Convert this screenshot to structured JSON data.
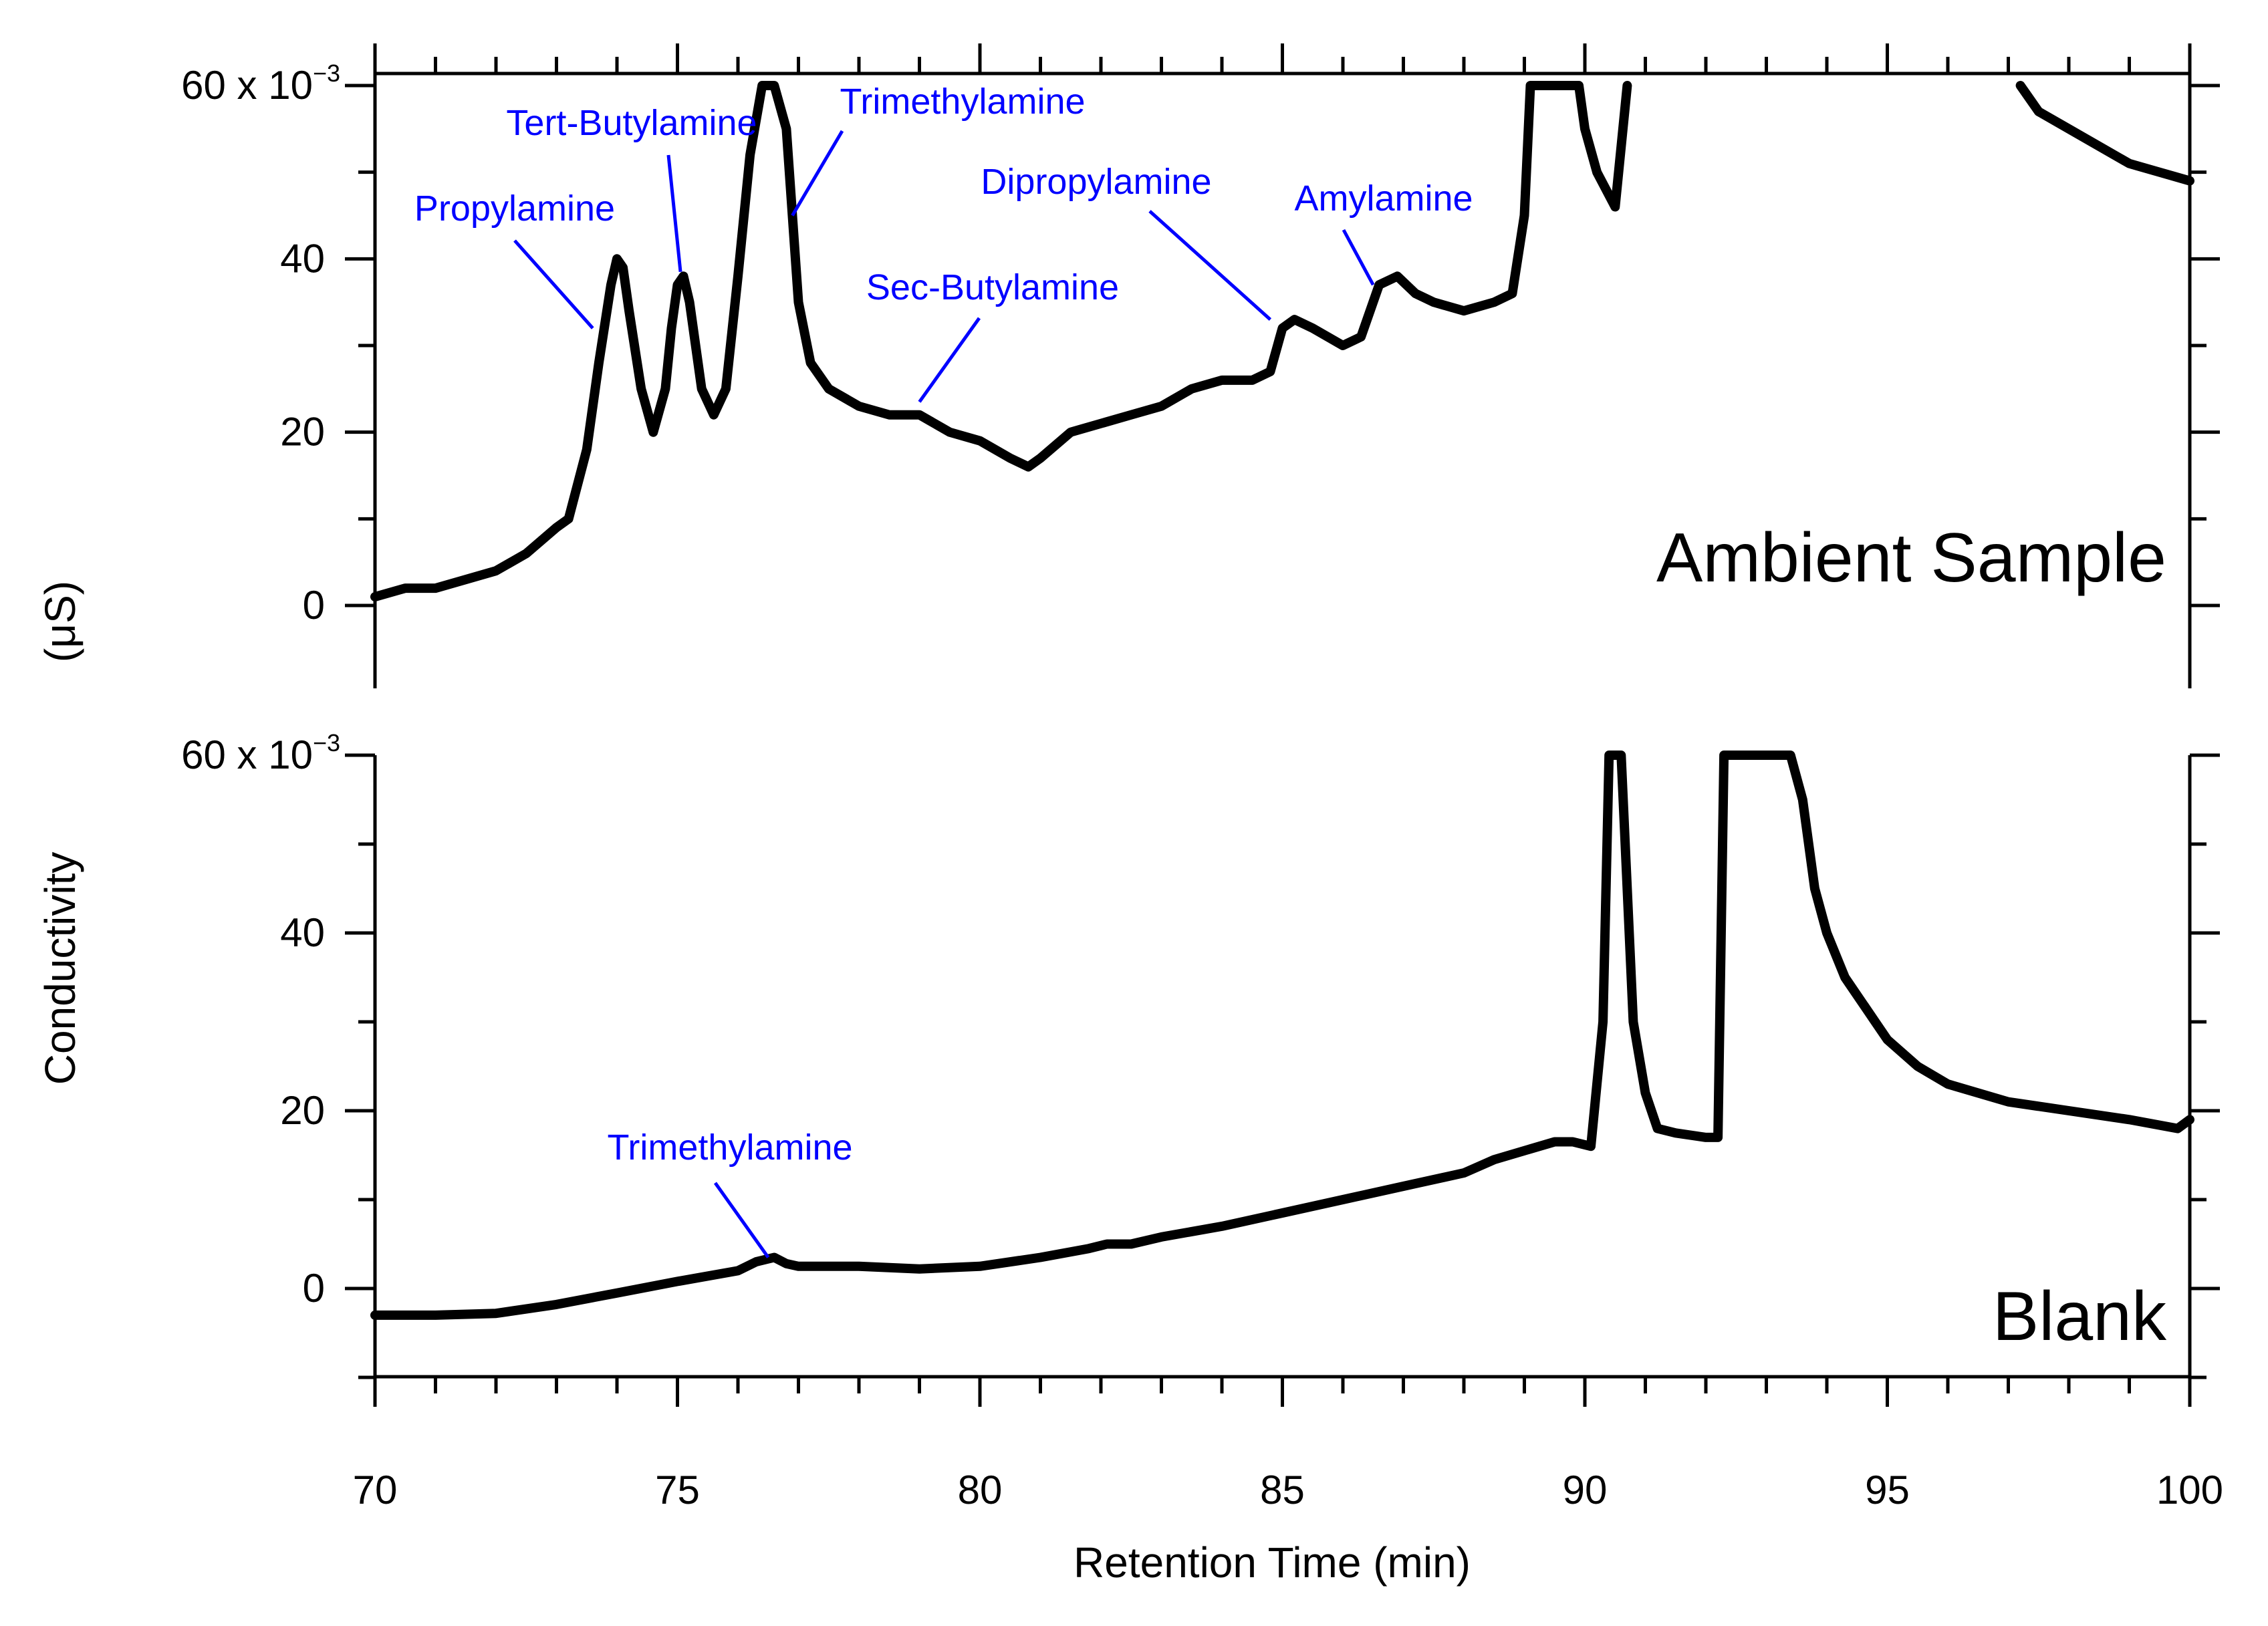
{
  "chart_data": {
    "type": "line",
    "xlabel": "Retention Time (min)",
    "ylabel_line1": "Conductivity",
    "ylabel_line2": "(μS)",
    "xlim": [
      70,
      100
    ],
    "x_ticks": [
      70,
      75,
      80,
      85,
      90,
      95,
      100
    ],
    "x_tick_labels": [
      "70",
      "75",
      "80",
      "85",
      "90",
      "95",
      "100"
    ],
    "y_tick_labels": [
      "0",
      "20",
      "40"
    ],
    "y_top_label_base": "60 x 10",
    "y_top_label_exp": "−3",
    "colors": {
      "trace": "#000000",
      "annotation": "#0000ff"
    },
    "panels": [
      {
        "name": "Ambient Sample",
        "label": "Ambient Sample",
        "ylim": [
          -0.01,
          0.06
        ],
        "y_ticks": [
          0,
          0.02,
          0.04,
          0.06
        ],
        "clip_max": 0.06,
        "series": {
          "name": "Ambient Sample",
          "x": [
            70.0,
            70.5,
            71.0,
            71.5,
            72.0,
            72.5,
            73.0,
            73.2,
            73.5,
            73.7,
            73.9,
            74.0,
            74.1,
            74.2,
            74.4,
            74.6,
            74.8,
            74.9,
            75.0,
            75.1,
            75.2,
            75.4,
            75.6,
            75.8,
            76.0,
            76.2,
            76.4,
            76.5,
            76.6,
            76.8,
            77.0,
            77.2,
            77.5,
            78.0,
            78.5,
            79.0,
            79.5,
            80.0,
            80.5,
            80.8,
            81.0,
            81.5,
            82.0,
            82.5,
            83.0,
            83.5,
            84.0,
            84.5,
            84.8,
            85.0,
            85.2,
            85.5,
            86.0,
            86.3,
            86.6,
            86.9,
            87.2,
            87.5,
            88.0,
            88.5,
            88.8,
            89.0,
            89.1,
            89.9,
            90.0,
            90.2,
            90.5,
            90.7,
            97.2,
            97.5,
            98.0,
            98.5,
            99.0,
            99.5,
            100.0
          ],
          "y": [
            0.001,
            0.002,
            0.002,
            0.003,
            0.004,
            0.006,
            0.009,
            0.01,
            0.018,
            0.028,
            0.037,
            0.04,
            0.039,
            0.034,
            0.025,
            0.02,
            0.025,
            0.032,
            0.037,
            0.038,
            0.035,
            0.025,
            0.022,
            0.025,
            0.038,
            0.052,
            0.065,
            0.065,
            0.065,
            0.055,
            0.035,
            0.028,
            0.025,
            0.023,
            0.022,
            0.022,
            0.02,
            0.019,
            0.017,
            0.016,
            0.017,
            0.02,
            0.021,
            0.022,
            0.023,
            0.025,
            0.026,
            0.026,
            0.027,
            0.032,
            0.033,
            0.032,
            0.03,
            0.031,
            0.037,
            0.038,
            0.036,
            0.035,
            0.034,
            0.035,
            0.036,
            0.045,
            0.065,
            0.065,
            0.055,
            0.05,
            0.046,
            0.065,
            0.06,
            0.057,
            0.055,
            0.053,
            0.051,
            0.05,
            0.049
          ]
        },
        "annotations": [
          {
            "text": "Propylamine",
            "target": [
              73.6,
              0.032
            ]
          },
          {
            "text": "Tert-Butylamine",
            "target": [
              75.05,
              0.0385
            ]
          },
          {
            "text": "Trimethylamine",
            "target": [
              76.9,
              0.045
            ]
          },
          {
            "text": "Sec-Butylamine",
            "target": [
              79.0,
              0.0235
            ]
          },
          {
            "text": "Dipropylamine",
            "target": [
              84.8,
              0.033
            ]
          },
          {
            "text": "Amylamine",
            "target": [
              86.5,
              0.037
            ]
          }
        ]
      },
      {
        "name": "Blank",
        "label": "Blank",
        "ylim": [
          -0.01,
          0.06
        ],
        "y_ticks": [
          0,
          0.02,
          0.04,
          0.06
        ],
        "clip_max": 0.06,
        "series": {
          "name": "Blank",
          "x": [
            70.0,
            71.0,
            72.0,
            73.0,
            74.0,
            75.0,
            76.0,
            76.3,
            76.6,
            76.8,
            77.0,
            78.0,
            79.0,
            80.0,
            81.0,
            81.8,
            82.1,
            82.5,
            83.0,
            84.0,
            85.0,
            86.0,
            87.0,
            88.0,
            88.5,
            89.0,
            89.5,
            89.8,
            90.1,
            90.3,
            90.4,
            90.6,
            90.8,
            91.0,
            91.2,
            91.5,
            92.0,
            92.2,
            92.3,
            93.4,
            93.6,
            93.8,
            94.0,
            94.3,
            94.6,
            95.0,
            95.5,
            96.0,
            97.0,
            98.0,
            99.0,
            99.8,
            100.0
          ],
          "y": [
            -0.003,
            -0.003,
            -0.0028,
            -0.0018,
            -0.0005,
            0.0008,
            0.002,
            0.003,
            0.0035,
            0.0028,
            0.0025,
            0.0025,
            0.0022,
            0.0025,
            0.0035,
            0.0045,
            0.005,
            0.005,
            0.0058,
            0.007,
            0.0085,
            0.01,
            0.0115,
            0.013,
            0.0145,
            0.0155,
            0.0165,
            0.0165,
            0.016,
            0.03,
            0.065,
            0.065,
            0.03,
            0.022,
            0.018,
            0.0175,
            0.017,
            0.017,
            0.065,
            0.065,
            0.055,
            0.045,
            0.04,
            0.035,
            0.032,
            0.028,
            0.025,
            0.023,
            0.021,
            0.02,
            0.019,
            0.018,
            0.019
          ]
        },
        "annotations": [
          {
            "text": "Trimethylamine",
            "target": [
              76.5,
              0.0035
            ]
          }
        ]
      }
    ]
  }
}
